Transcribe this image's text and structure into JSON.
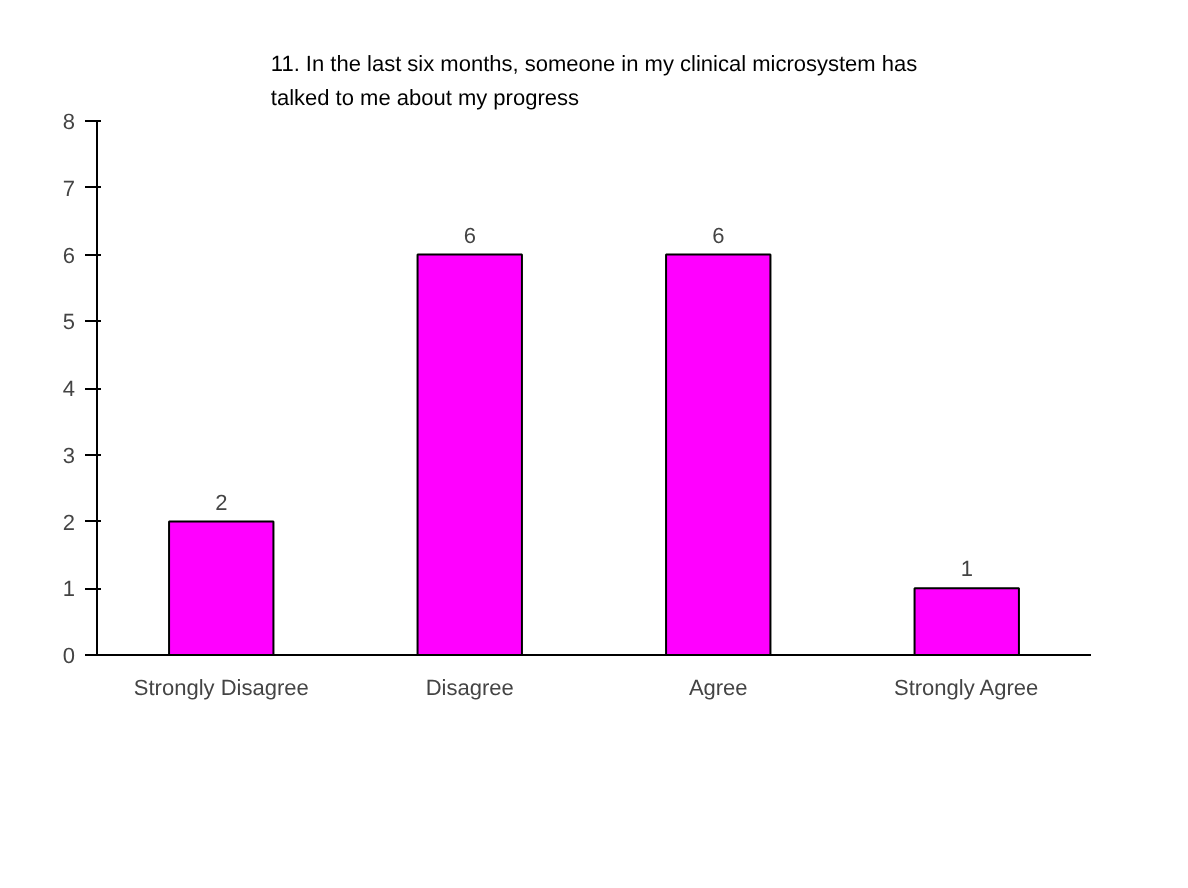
{
  "chart_data": {
    "type": "bar",
    "title": "11. In the last six months, someone in my clinical microsystem has talked to me about my progress",
    "categories": [
      "Strongly Disagree",
      "Disagree",
      "Agree",
      "Strongly Agree"
    ],
    "values": [
      2,
      6,
      6,
      1
    ],
    "color": "#ff00ff",
    "ylim": [
      0,
      8
    ],
    "yticks": [
      0,
      1,
      2,
      3,
      4,
      5,
      6,
      7,
      8
    ],
    "grid": false,
    "data_labels": true
  }
}
